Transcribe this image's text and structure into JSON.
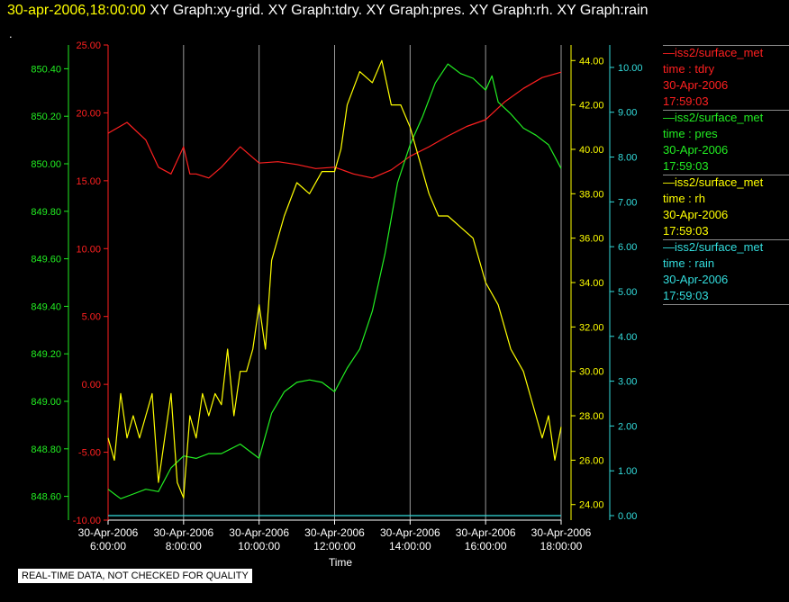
{
  "header": {
    "timestamp": "30-apr-2006,18:00:00",
    "graphs": "XY Graph:xy-grid.  XY Graph:tdry.  XY Graph:pres.  XY Graph:rh.  XY Graph:rain",
    "dot": "."
  },
  "footer": {
    "notice": "REAL-TIME DATA, NOT CHECKED FOR QUALITY"
  },
  "legend": [
    {
      "source": "—iss2/surface_met",
      "field": "time : tdry",
      "date": "30-Apr-2006",
      "time": "17:59:03",
      "color": "#ff2020"
    },
    {
      "source": "—iss2/surface_met",
      "field": "time : pres",
      "date": "30-Apr-2006",
      "time": "17:59:03",
      "color": "#22ee22"
    },
    {
      "source": "—iss2/surface_met",
      "field": "time : rh",
      "date": "30-Apr-2006",
      "time": "17:59:03",
      "color": "#ffff00"
    },
    {
      "source": "—iss2/surface_met",
      "field": "time : rain",
      "date": "30-Apr-2006",
      "time": "17:59:03",
      "color": "#33dddd"
    }
  ],
  "chart_data": {
    "type": "line",
    "xlabel": "Time",
    "x_ticks": [
      {
        "date": "30-Apr-2006",
        "time": "6:00:00"
      },
      {
        "date": "30-Apr-2006",
        "time": "8:00:00"
      },
      {
        "date": "30-Apr-2006",
        "time": "10:00:00"
      },
      {
        "date": "30-Apr-2006",
        "time": "12:00:00"
      },
      {
        "date": "30-Apr-2006",
        "time": "14:00:00"
      },
      {
        "date": "30-Apr-2006",
        "time": "16:00:00"
      },
      {
        "date": "30-Apr-2006",
        "time": "18:00:00"
      }
    ],
    "xlim": [
      "06:00",
      "18:00"
    ],
    "grid": "vertical",
    "axes": {
      "tdry": {
        "color": "#ff2020",
        "ylim": [
          -10,
          25
        ],
        "ticks": [
          "25.00",
          "20.00",
          "15.00",
          "10.00",
          "5.00",
          "0.00",
          "-5.00",
          "-10.00"
        ]
      },
      "pres": {
        "color": "#22ee22",
        "ylim": [
          848.5,
          850.5
        ],
        "ticks": [
          "850.40",
          "850.20",
          "850.00",
          "849.80",
          "849.60",
          "849.40",
          "849.20",
          "849.00",
          "848.80",
          "848.60"
        ]
      },
      "rh": {
        "color": "#ffff00",
        "ylim": [
          23.3,
          44.7
        ],
        "ticks": [
          "44.00",
          "42.00",
          "40.00",
          "38.00",
          "36.00",
          "34.00",
          "32.00",
          "30.00",
          "28.00",
          "26.00",
          "24.00"
        ]
      },
      "rain": {
        "color": "#33dddd",
        "ylim": [
          -0.1,
          10.5
        ],
        "ticks": [
          "10.00",
          "9.00",
          "8.00",
          "7.00",
          "6.00",
          "5.00",
          "4.00",
          "3.00",
          "2.00",
          "1.00",
          "0.00"
        ]
      }
    },
    "series": [
      {
        "name": "tdry",
        "axis": "tdry",
        "color": "#ff2020",
        "x": [
          "06:00",
          "06:30",
          "07:00",
          "07:20",
          "07:40",
          "08:00",
          "08:10",
          "08:20",
          "08:40",
          "09:00",
          "09:30",
          "10:00",
          "10:30",
          "11:00",
          "11:30",
          "12:00",
          "12:30",
          "13:00",
          "13:30",
          "14:00",
          "14:30",
          "15:00",
          "15:30",
          "16:00",
          "16:30",
          "17:00",
          "17:30",
          "18:00"
        ],
        "y": [
          18.5,
          19.3,
          18.0,
          16.0,
          15.5,
          17.5,
          15.5,
          15.5,
          15.2,
          16.0,
          17.5,
          16.3,
          16.4,
          16.2,
          15.9,
          16.0,
          15.5,
          15.2,
          15.8,
          16.8,
          17.5,
          18.3,
          19.0,
          19.5,
          20.8,
          21.8,
          22.6,
          23.0
        ]
      },
      {
        "name": "pres",
        "axis": "pres",
        "color": "#22ee22",
        "x": [
          "06:00",
          "06:20",
          "06:40",
          "07:00",
          "07:20",
          "07:40",
          "08:00",
          "08:20",
          "08:40",
          "09:00",
          "09:30",
          "10:00",
          "10:20",
          "10:40",
          "11:00",
          "11:20",
          "11:40",
          "12:00",
          "12:20",
          "12:40",
          "13:00",
          "13:20",
          "13:40",
          "14:00",
          "14:20",
          "14:40",
          "15:00",
          "15:20",
          "15:40",
          "16:00",
          "16:10",
          "16:20",
          "16:40",
          "17:00",
          "17:20",
          "17:40",
          "18:00"
        ],
        "y": [
          848.63,
          848.59,
          848.61,
          848.63,
          848.62,
          848.72,
          848.77,
          848.76,
          848.78,
          848.78,
          848.82,
          848.76,
          848.95,
          849.04,
          849.08,
          849.09,
          849.08,
          849.04,
          849.14,
          849.22,
          849.38,
          849.62,
          849.92,
          850.08,
          850.2,
          850.34,
          850.42,
          850.38,
          850.36,
          850.31,
          850.37,
          850.26,
          850.21,
          850.15,
          850.12,
          850.08,
          849.98
        ]
      },
      {
        "name": "rh",
        "axis": "rh",
        "color": "#ffff00",
        "x": [
          "06:00",
          "06:10",
          "06:20",
          "06:30",
          "06:40",
          "06:50",
          "07:00",
          "07:10",
          "07:20",
          "07:30",
          "07:40",
          "07:50",
          "08:00",
          "08:10",
          "08:20",
          "08:30",
          "08:40",
          "08:50",
          "09:00",
          "09:10",
          "09:20",
          "09:30",
          "09:40",
          "09:50",
          "10:00",
          "10:10",
          "10:20",
          "10:40",
          "11:00",
          "11:20",
          "11:40",
          "12:00",
          "12:10",
          "12:20",
          "12:40",
          "13:00",
          "13:15",
          "13:30",
          "13:45",
          "14:00",
          "14:15",
          "14:30",
          "14:45",
          "15:00",
          "15:20",
          "15:40",
          "16:00",
          "16:20",
          "16:40",
          "17:00",
          "17:20",
          "17:30",
          "17:40",
          "17:50",
          "18:00"
        ],
        "y": [
          27,
          26,
          29,
          27,
          28,
          27,
          28,
          29,
          25,
          27,
          29,
          25,
          24.3,
          28,
          27,
          29,
          28,
          29,
          28.5,
          31,
          28,
          30,
          30,
          31,
          33,
          31,
          35,
          37,
          38.5,
          38,
          39,
          39,
          40,
          42,
          43.5,
          43,
          44,
          42,
          42,
          41,
          39.5,
          38,
          37,
          37,
          36.5,
          36,
          34,
          33,
          31,
          30,
          28,
          27,
          28,
          26,
          27.5
        ]
      },
      {
        "name": "rain",
        "axis": "rain",
        "color": "#33dddd",
        "x": [
          "06:00",
          "18:00"
        ],
        "y": [
          0,
          0
        ]
      }
    ]
  }
}
